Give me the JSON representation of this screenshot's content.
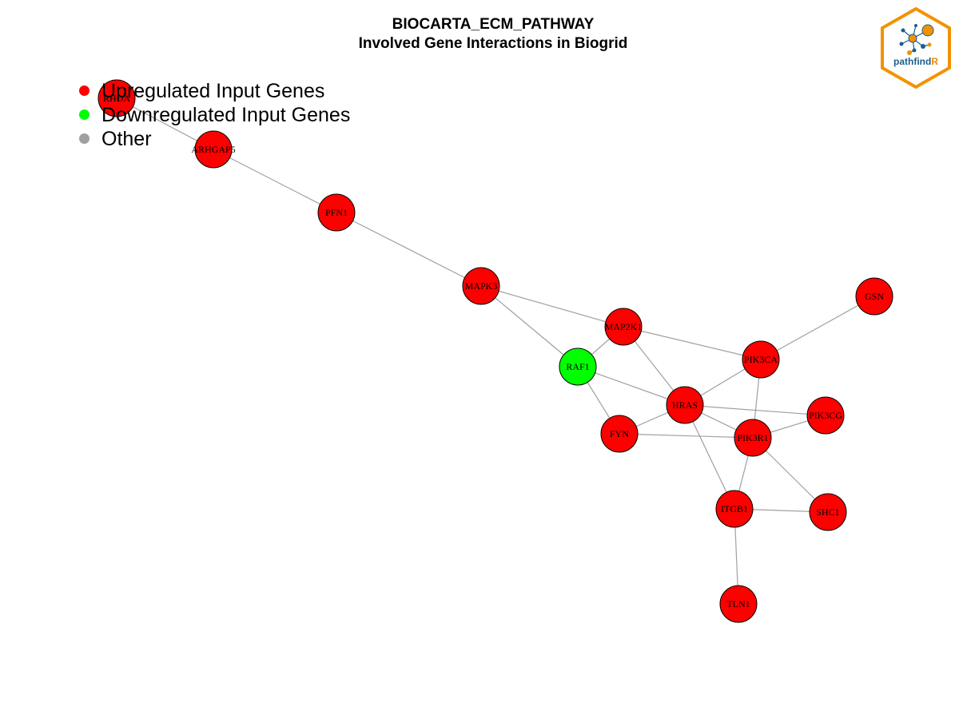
{
  "title": {
    "line1": "BIOCARTA_ECM_PATHWAY",
    "line2": "Involved Gene Interactions in Biogrid"
  },
  "legend": [
    {
      "label": "Upregulated Input Genes",
      "color": "#ff0000"
    },
    {
      "label": "Downregulated Input Genes",
      "color": "#00ff00"
    },
    {
      "label": "Other",
      "color": "#a0a0a0"
    }
  ],
  "logo": {
    "text_main": "pathfind",
    "text_accent": "R",
    "frame_color": "#f39200",
    "text_color": "#1c5f8c"
  },
  "colors": {
    "up": "#ff0000",
    "down": "#00ff00",
    "edge": "#a0a0a0",
    "node_border": "#000000"
  },
  "nodes": [
    {
      "id": "RHOA",
      "status": "up"
    },
    {
      "id": "ARHGAP5",
      "status": "up"
    },
    {
      "id": "PFN1",
      "status": "up"
    },
    {
      "id": "MAPK3",
      "status": "up"
    },
    {
      "id": "MAP2K1",
      "status": "up"
    },
    {
      "id": "RAF1",
      "status": "down"
    },
    {
      "id": "PIK3CA",
      "status": "up"
    },
    {
      "id": "GSN",
      "status": "up"
    },
    {
      "id": "HRAS",
      "status": "up"
    },
    {
      "id": "FYN",
      "status": "up"
    },
    {
      "id": "PIK3CG",
      "status": "up"
    },
    {
      "id": "PIK3R1",
      "status": "up"
    },
    {
      "id": "ITGB1",
      "status": "up"
    },
    {
      "id": "SHC1",
      "status": "up"
    },
    {
      "id": "TLN1",
      "status": "up"
    }
  ],
  "edges": [
    [
      "RHOA",
      "ARHGAP5"
    ],
    [
      "ARHGAP5",
      "PFN1"
    ],
    [
      "PFN1",
      "MAPK3"
    ],
    [
      "MAPK3",
      "MAP2K1"
    ],
    [
      "MAPK3",
      "RAF1"
    ],
    [
      "MAP2K1",
      "RAF1"
    ],
    [
      "MAP2K1",
      "PIK3CA"
    ],
    [
      "MAP2K1",
      "HRAS"
    ],
    [
      "GSN",
      "PIK3CA"
    ],
    [
      "RAF1",
      "HRAS"
    ],
    [
      "RAF1",
      "FYN"
    ],
    [
      "PIK3CA",
      "HRAS"
    ],
    [
      "PIK3CA",
      "PIK3R1"
    ],
    [
      "HRAS",
      "FYN"
    ],
    [
      "HRAS",
      "PIK3CG"
    ],
    [
      "HRAS",
      "PIK3R1"
    ],
    [
      "HRAS",
      "ITGB1"
    ],
    [
      "FYN",
      "PIK3R1"
    ],
    [
      "PIK3CG",
      "PIK3R1"
    ],
    [
      "PIK3R1",
      "ITGB1"
    ],
    [
      "PIK3R1",
      "SHC1"
    ],
    [
      "ITGB1",
      "SHC1"
    ],
    [
      "ITGB1",
      "TLN1"
    ]
  ]
}
